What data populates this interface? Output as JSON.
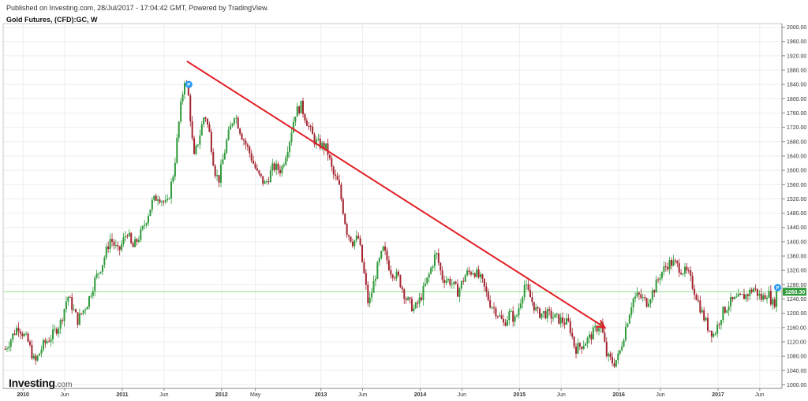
{
  "header": {
    "published": "Published on Investing.com, 28/Jul/2017 - 17:04:42 GMT, Powered by TradingView.",
    "title": "Gold Futures, (CFD):GC, W"
  },
  "brand": {
    "main": "Investing",
    "domain": ".com"
  },
  "colors": {
    "up": "#2e9a3a",
    "down": "#a3232f",
    "trendline": "#e21f26",
    "current_line": "#8fe08f",
    "price_label_bg": "#2e9a3a",
    "marker": "#2196f3",
    "grid": "#eeeeee",
    "axis": "#888888"
  },
  "chart_data": {
    "type": "candlestick",
    "title": "Gold Futures, (CFD):GC, W",
    "ylim": [
      990,
      2010
    ],
    "y_ticks": [
      1000,
      1040,
      1080,
      1120,
      1160,
      1200,
      1240,
      1280,
      1320,
      1360,
      1400,
      1440,
      1480,
      1520,
      1560,
      1600,
      1640,
      1680,
      1720,
      1760,
      1800,
      1840,
      1880,
      1920,
      1960,
      2000
    ],
    "y_tick_labels": [
      "1000.00",
      "1040.00",
      "1080.00",
      "1120.00",
      "1160.00",
      "1200.00",
      "1240.00",
      "1280.00",
      "1320.00",
      "1360.00",
      "1400.00",
      "1440.00",
      "1480.00",
      "1520.00",
      "1560.00",
      "1600.00",
      "1640.00",
      "1680.00",
      "1720.00",
      "1760.00",
      "1800.00",
      "1840.00",
      "1880.00",
      "1920.00",
      "1960.00",
      "2000.00"
    ],
    "x_ticks": [
      {
        "label": "2010",
        "t": 2010.0,
        "bold": true
      },
      {
        "label": "Jun",
        "t": 2010.42,
        "bold": false
      },
      {
        "label": "2011",
        "t": 2011.0,
        "bold": true
      },
      {
        "label": "Jun",
        "t": 2011.42,
        "bold": false
      },
      {
        "label": "2012",
        "t": 2012.0,
        "bold": true
      },
      {
        "label": "May",
        "t": 2012.34,
        "bold": false
      },
      {
        "label": "2013",
        "t": 2013.0,
        "bold": true
      },
      {
        "label": "Jun",
        "t": 2013.42,
        "bold": false
      },
      {
        "label": "2014",
        "t": 2014.0,
        "bold": true
      },
      {
        "label": "Jun",
        "t": 2014.42,
        "bold": false
      },
      {
        "label": "2015",
        "t": 2015.0,
        "bold": true
      },
      {
        "label": "Jun",
        "t": 2015.42,
        "bold": false
      },
      {
        "label": "2016",
        "t": 2016.0,
        "bold": true
      },
      {
        "label": "Jun",
        "t": 2016.42,
        "bold": false
      },
      {
        "label": "2017",
        "t": 2017.0,
        "bold": true
      },
      {
        "label": "Jun",
        "t": 2017.42,
        "bold": false
      }
    ],
    "xlim": [
      2009.8,
      2017.62
    ],
    "current_price": 1260.3,
    "current_price_label": "1260.30",
    "price_path": [
      [
        2009.82,
        1100
      ],
      [
        2009.95,
        1165
      ],
      [
        2010.05,
        1120
      ],
      [
        2010.12,
        1060
      ],
      [
        2010.2,
        1110
      ],
      [
        2010.3,
        1140
      ],
      [
        2010.38,
        1175
      ],
      [
        2010.45,
        1250
      ],
      [
        2010.55,
        1180
      ],
      [
        2010.65,
        1230
      ],
      [
        2010.72,
        1290
      ],
      [
        2010.8,
        1340
      ],
      [
        2010.88,
        1410
      ],
      [
        2010.96,
        1370
      ],
      [
        2011.05,
        1430
      ],
      [
        2011.1,
        1380
      ],
      [
        2011.2,
        1430
      ],
      [
        2011.3,
        1510
      ],
      [
        2011.36,
        1530
      ],
      [
        2011.45,
        1500
      ],
      [
        2011.52,
        1600
      ],
      [
        2011.58,
        1760
      ],
      [
        2011.63,
        1860
      ],
      [
        2011.67,
        1800
      ],
      [
        2011.72,
        1630
      ],
      [
        2011.78,
        1700
      ],
      [
        2011.83,
        1760
      ],
      [
        2011.88,
        1700
      ],
      [
        2011.93,
        1600
      ],
      [
        2011.97,
        1570
      ],
      [
        2012.05,
        1680
      ],
      [
        2012.13,
        1760
      ],
      [
        2012.2,
        1700
      ],
      [
        2012.28,
        1650
      ],
      [
        2012.36,
        1590
      ],
      [
        2012.44,
        1560
      ],
      [
        2012.52,
        1610
      ],
      [
        2012.6,
        1600
      ],
      [
        2012.68,
        1680
      ],
      [
        2012.74,
        1760
      ],
      [
        2012.8,
        1780
      ],
      [
        2012.88,
        1720
      ],
      [
        2012.94,
        1680
      ],
      [
        2013.0,
        1670
      ],
      [
        2013.06,
        1660
      ],
      [
        2013.12,
        1590
      ],
      [
        2013.18,
        1560
      ],
      [
        2013.26,
        1430
      ],
      [
        2013.32,
        1400
      ],
      [
        2013.38,
        1410
      ],
      [
        2013.44,
        1300
      ],
      [
        2013.48,
        1220
      ],
      [
        2013.56,
        1320
      ],
      [
        2013.63,
        1380
      ],
      [
        2013.7,
        1320
      ],
      [
        2013.78,
        1300
      ],
      [
        2013.86,
        1240
      ],
      [
        2013.94,
        1210
      ],
      [
        2014.0,
        1240
      ],
      [
        2014.08,
        1300
      ],
      [
        2014.16,
        1370
      ],
      [
        2014.22,
        1300
      ],
      [
        2014.3,
        1290
      ],
      [
        2014.38,
        1260
      ],
      [
        2014.46,
        1310
      ],
      [
        2014.54,
        1320
      ],
      [
        2014.62,
        1290
      ],
      [
        2014.7,
        1230
      ],
      [
        2014.78,
        1200
      ],
      [
        2014.84,
        1170
      ],
      [
        2014.9,
        1200
      ],
      [
        2014.96,
        1180
      ],
      [
        2015.05,
        1280
      ],
      [
        2015.1,
        1250
      ],
      [
        2015.18,
        1200
      ],
      [
        2015.26,
        1200
      ],
      [
        2015.34,
        1190
      ],
      [
        2015.42,
        1180
      ],
      [
        2015.5,
        1170
      ],
      [
        2015.56,
        1100
      ],
      [
        2015.62,
        1110
      ],
      [
        2015.7,
        1130
      ],
      [
        2015.78,
        1160
      ],
      [
        2015.82,
        1170
      ],
      [
        2015.88,
        1080
      ],
      [
        2015.95,
        1060
      ],
      [
        2016.0,
        1080
      ],
      [
        2016.06,
        1150
      ],
      [
        2016.14,
        1240
      ],
      [
        2016.2,
        1250
      ],
      [
        2016.28,
        1230
      ],
      [
        2016.36,
        1270
      ],
      [
        2016.42,
        1310
      ],
      [
        2016.5,
        1340
      ],
      [
        2016.56,
        1340
      ],
      [
        2016.64,
        1320
      ],
      [
        2016.7,
        1310
      ],
      [
        2016.78,
        1250
      ],
      [
        2016.84,
        1200
      ],
      [
        2016.9,
        1160
      ],
      [
        2016.96,
        1140
      ],
      [
        2017.04,
        1200
      ],
      [
        2017.12,
        1230
      ],
      [
        2017.2,
        1240
      ],
      [
        2017.28,
        1250
      ],
      [
        2017.36,
        1270
      ],
      [
        2017.44,
        1240
      ],
      [
        2017.5,
        1260
      ],
      [
        2017.56,
        1220
      ],
      [
        2017.59,
        1258
      ]
    ],
    "trendline": {
      "start": [
        2011.65,
        1905
      ],
      "end": [
        2015.86,
        1160
      ]
    },
    "markers": [
      {
        "label": "P",
        "t": 2011.67,
        "price": 1840
      },
      {
        "label": "P",
        "t": 2017.6,
        "price": 1272
      }
    ]
  }
}
